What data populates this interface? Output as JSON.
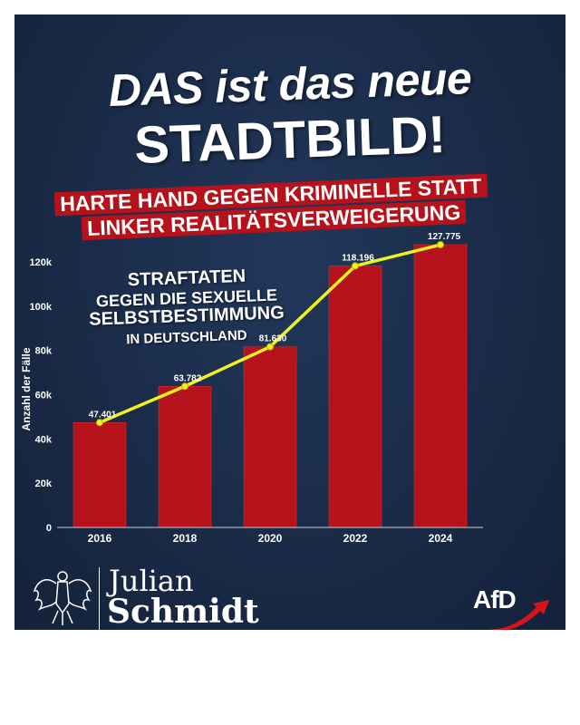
{
  "headline": {
    "line1": "DAS ist das neue",
    "line2": "STADTBILD!"
  },
  "subheadline": {
    "line1": "HARTE HAND GEGEN KRIMINELLE STATT",
    "line2": "LINKER REALITÄTSVERWEIGERUNG"
  },
  "annotation": {
    "line1": "STRAFTATEN",
    "line2": "GEGEN DIE SEXUELLE",
    "line3": "SELBSTBESTIMMUNG",
    "line4": "IN DEUTSCHLAND"
  },
  "footer": {
    "first_name": "Julian",
    "last_name": "Schmidt",
    "party_logo": "AfD"
  },
  "colors": {
    "bar": "#b5121b",
    "line": "#f2f21a",
    "background": "#1a2b48"
  },
  "chart_data": {
    "type": "bar",
    "categories": [
      "2016",
      "2018",
      "2020",
      "2022",
      "2024"
    ],
    "values": [
      47401,
      63782,
      81630,
      118196,
      127775
    ],
    "value_labels": [
      "47.401",
      "63.782",
      "81.630",
      "118.196",
      "127.775"
    ],
    "overlay_line": true,
    "title": "STRAFTATEN GEGEN DIE SEXUELLE SELBSTBESTIMMUNG IN DEUTSCHLAND",
    "xlabel": "",
    "ylabel": "Anzahl der Fälle",
    "ylim": [
      0,
      130000
    ],
    "yticks": [
      0,
      20000,
      40000,
      60000,
      80000,
      100000,
      120000
    ],
    "ytick_labels": [
      "0",
      "20k",
      "40k",
      "60k",
      "80k",
      "100k",
      "120k"
    ],
    "grid": false
  }
}
